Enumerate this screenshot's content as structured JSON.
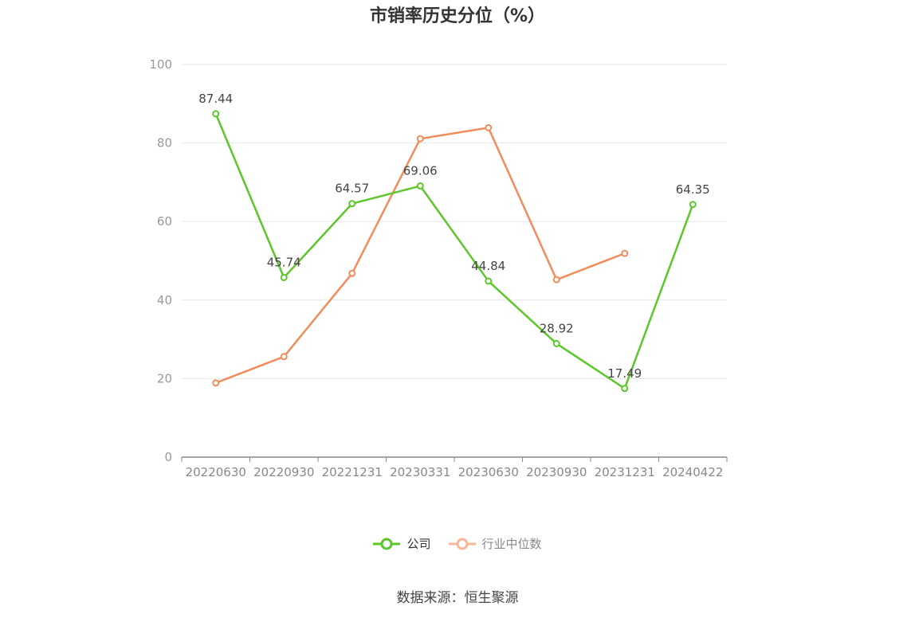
{
  "chart_data": {
    "type": "line",
    "title": "市销率历史分位（%）",
    "categories": [
      "20220630",
      "20220930",
      "20221231",
      "20230331",
      "20230630",
      "20230930",
      "20231231",
      "20240422"
    ],
    "ylim": [
      0,
      100
    ],
    "yticks": [
      0,
      20,
      40,
      60,
      80,
      100
    ],
    "grid": true,
    "legend_position": "bottom-center",
    "series": [
      {
        "name": "公司",
        "color": "#5cc72a",
        "values": [
          87.44,
          45.74,
          64.57,
          69.06,
          44.84,
          28.92,
          17.49,
          64.35
        ],
        "labels": [
          "87.44",
          "45.74",
          "64.57",
          "69.06",
          "44.84",
          "28.92",
          "17.49",
          "64.35"
        ]
      },
      {
        "name": "行业中位数",
        "color": "#f28c5a",
        "values": [
          18.9,
          25.6,
          46.8,
          81.1,
          83.9,
          45.2,
          51.9,
          null
        ]
      }
    ]
  },
  "source_text": "数据来源：恒生聚源"
}
